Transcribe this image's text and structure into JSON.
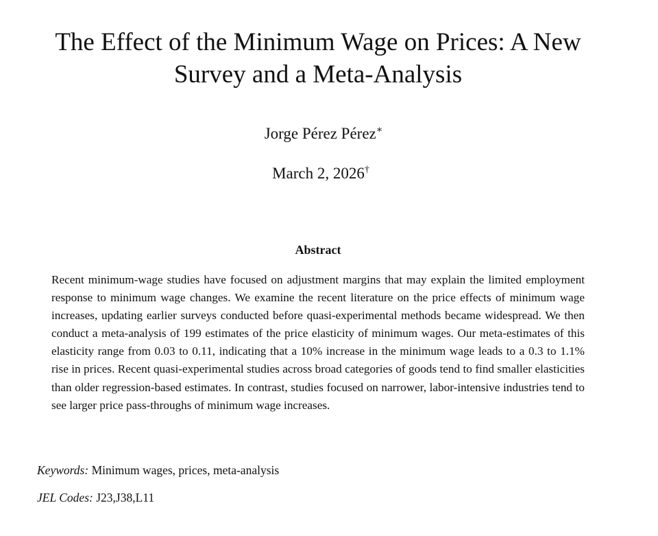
{
  "paper": {
    "title": "The Effect of the Minimum Wage on Prices: A New Survey and a Meta-Analysis",
    "author": "Jorge Pérez Pérez",
    "author_mark": "∗",
    "date": "March 2, 2026",
    "date_mark": "†",
    "abstract_heading": "Abstract",
    "abstract_text": "Recent minimum-wage studies have focused on adjustment margins that may explain the limited employment response to minimum wage changes.  We examine the recent literature on the price effects of minimum wage increases, updating earlier surveys conducted before quasi-experimental methods became widespread. We then conduct a meta-analysis of 199 estimates of the price elasticity of minimum wages.  Our meta-estimates of this elasticity range from 0.03 to 0.11, indicating that a 10% increase in the minimum wage leads to a 0.3 to 1.1% rise in prices.  Recent quasi-experimental studies across broad categories of goods tend to find smaller elasticities than older regression-based estimates. In contrast, studies focused on narrower, labor-intensive industries tend to see larger price pass-throughs of minimum wage increases.",
    "keywords_label": "Keywords:",
    "keywords": "Minimum wages, prices, meta-analysis",
    "jel_label": "JEL Codes:",
    "jel_codes": "J23,J38,L11"
  }
}
